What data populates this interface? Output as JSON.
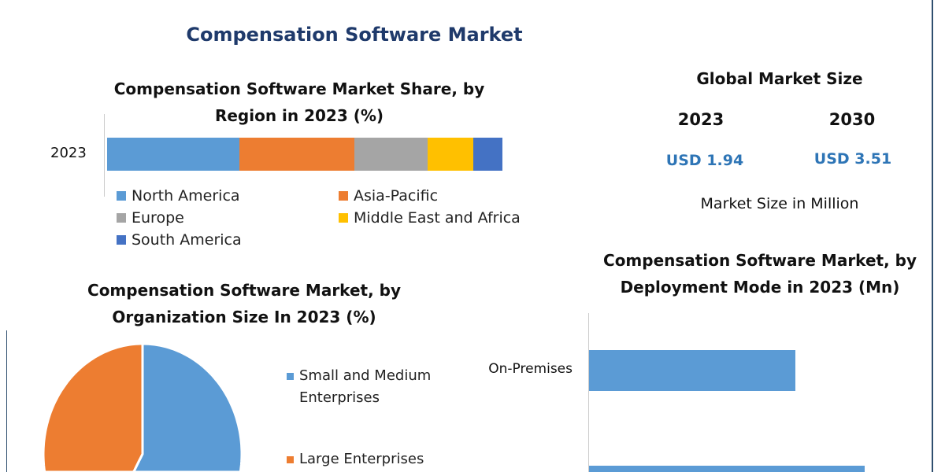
{
  "title": "Compensation Software Market",
  "market_size": {
    "heading": "Global Market Size",
    "years": [
      "2023",
      "2030"
    ],
    "values": [
      "USD 1.94",
      "USD 3.51"
    ],
    "unit_note": "Market Size in Million"
  },
  "colors": {
    "title": "#1f3a6b",
    "usd": "#2e75b6",
    "frame": "#2f4f6f"
  },
  "chart_data": [
    {
      "type": "bar",
      "stacked": true,
      "orientation": "horizontal",
      "title_lines": [
        "Compensation Software Market Share, by",
        "Region in 2023 (%)"
      ],
      "categories": [
        "2023"
      ],
      "series": [
        {
          "name": "North America",
          "values": [
            33.5
          ],
          "color": "#5b9bd5"
        },
        {
          "name": "Asia-Pacific",
          "values": [
            29.1
          ],
          "color": "#ed7d31"
        },
        {
          "name": "Europe",
          "values": [
            18.5
          ],
          "color": "#a5a5a5"
        },
        {
          "name": "Middle East and Africa",
          "values": [
            11.6
          ],
          "color": "#ffc000"
        },
        {
          "name": "South America",
          "values": [
            7.4
          ],
          "color": "#4472c4"
        }
      ],
      "legend": "bottom"
    },
    {
      "type": "pie",
      "title_lines": [
        "Compensation Software Market, by",
        "Organization Size In 2023 (%)"
      ],
      "slices": [
        {
          "name_lines": [
            "Small and Medium",
            "Enterprises"
          ],
          "value": 58,
          "color": "#5b9bd5"
        },
        {
          "name_lines": [
            "Large Enterprises"
          ],
          "value": 42,
          "color": "#ed7d31"
        }
      ],
      "legend": "right"
    },
    {
      "type": "bar",
      "orientation": "horizontal",
      "title_lines": [
        "Compensation Software Market, by",
        "Deployment Mode in 2023 (Mn)"
      ],
      "categories": [
        "On-Premises",
        ""
      ],
      "values": [
        0.83,
        1.11
      ],
      "color": "#5b9bd5"
    }
  ]
}
